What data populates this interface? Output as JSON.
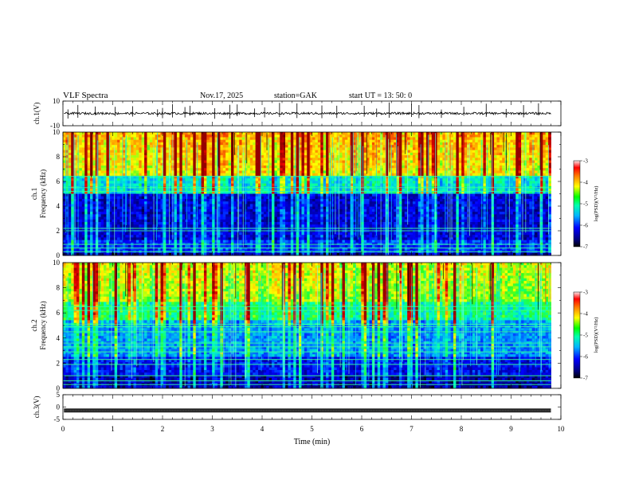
{
  "header": {
    "title": "VLF  Spectra",
    "date": "Nov.17, 2025",
    "station": "station=GAK",
    "start_ut": "start  UT  =    13: 50: 0"
  },
  "chart_data": [
    {
      "type": "line",
      "id": "ch1-waveform",
      "ylabel": "ch.1(V)",
      "ylim": [
        -10,
        10
      ],
      "yticks": [
        10,
        -10
      ],
      "x_range_min": [
        0,
        10
      ],
      "description_values": "waveform centered near 1 V with spikes",
      "baseline": 0,
      "spike_minutes": [
        0.1,
        0.3,
        0.65,
        1.05,
        1.4,
        1.9,
        2.0,
        2.2,
        2.45,
        2.55,
        3.05,
        3.35,
        3.5,
        3.85,
        4.05,
        4.35,
        4.7,
        5.2,
        5.5,
        6.05,
        6.3,
        6.55,
        7.0,
        7.15,
        7.6,
        8.05,
        8.5,
        8.9,
        9.25,
        9.55
      ]
    },
    {
      "type": "heatmap",
      "id": "ch1-spectrogram",
      "ylabel": "ch.1\nFrequency  (kHz)",
      "ylabel_line1": "ch.1",
      "ylabel_line2": "Frequency  (kHz)",
      "ylim_khz": [
        0,
        10
      ],
      "yticks": [
        0,
        2,
        4,
        6,
        8,
        10
      ],
      "x_range_min": [
        0,
        9.8
      ],
      "colorbar": {
        "label": "log(PSD)(V²/Hz)",
        "range": [
          -7,
          -3
        ],
        "ticks": [
          "-3",
          "-4",
          "-5",
          "-6",
          "-7"
        ]
      },
      "horizontal_bands_khz": [
        0.3,
        0.6,
        0.9,
        2.0,
        2.2,
        5.2,
        5.5,
        6.4
      ]
    },
    {
      "type": "heatmap",
      "id": "ch2-spectrogram",
      "ylabel": "ch.2\nFrequency  (kHz)",
      "ylabel_line1": "ch.2",
      "ylabel_line2": "Frequency  (kHz)",
      "ylim_khz": [
        0,
        10
      ],
      "yticks": [
        0,
        2,
        4,
        6,
        8,
        10
      ],
      "x_range_min": [
        0,
        9.8
      ],
      "colorbar": {
        "label": "log(PSD)(V²/Hz)",
        "range": [
          -7,
          -3
        ],
        "ticks": [
          "-3",
          "-4",
          "-5",
          "-6",
          "-7"
        ]
      },
      "horizontal_bands_khz": [
        0.3,
        0.6,
        1.0,
        1.9,
        2.3,
        2.9,
        3.3,
        3.6,
        4.5,
        4.9,
        5.1,
        6.2,
        6.5
      ]
    },
    {
      "type": "line",
      "id": "ch3-waveform",
      "ylabel": "ch.3(V)",
      "ylim": [
        -5,
        5
      ],
      "yticks": [
        5,
        0,
        -5
      ],
      "x_range_min": [
        0,
        9.8
      ],
      "level_v": -1.4
    }
  ],
  "xaxis": {
    "label": "Time  (min)",
    "ticks": [
      "0",
      "1",
      "2",
      "3",
      "4",
      "5",
      "6",
      "7",
      "8",
      "9",
      "10"
    ],
    "range_min": [
      0,
      10
    ]
  }
}
